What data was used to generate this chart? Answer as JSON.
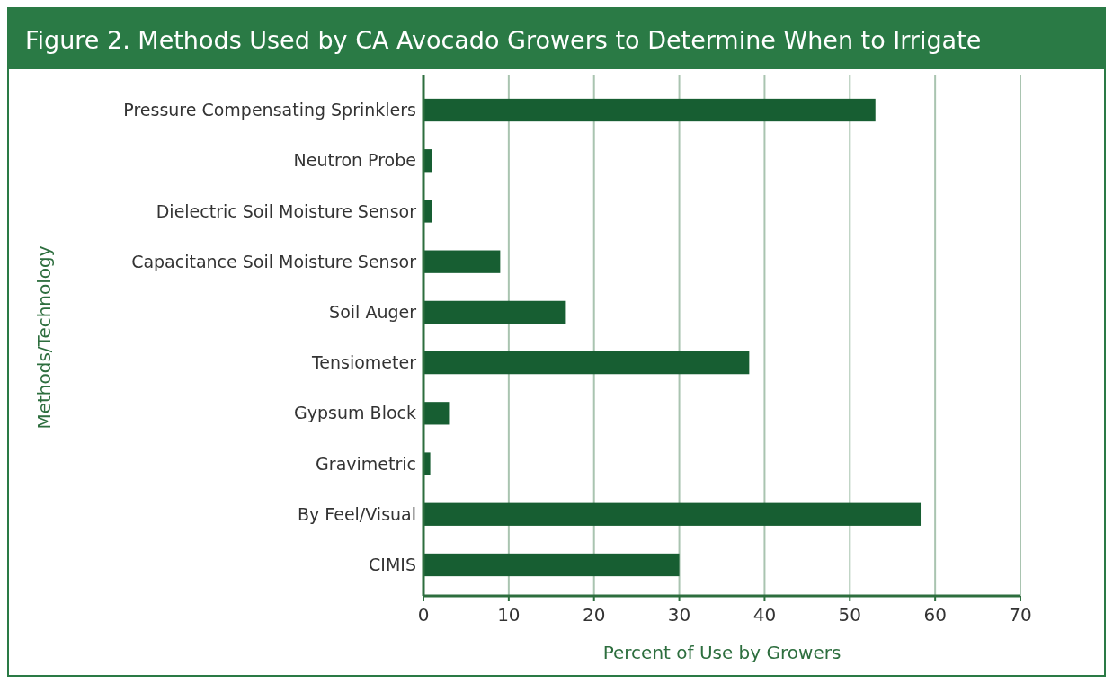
{
  "chart_data": {
    "type": "bar",
    "orientation": "horizontal",
    "title": "Figure 2. Methods Used by CA Avocado Growers to Determine When to Irrigate",
    "xlabel": "Percent of Use by Growers",
    "ylabel": "Methods/Technology",
    "categories": [
      "Pressure Compensating Sprinklers",
      "Neutron Probe",
      "Dielectric Soil Moisture Sensor",
      "Capacitance Soil Moisture Sensor",
      "Soil Auger",
      "Tensiometer",
      "Gypsum Block",
      "Gravimetric",
      "By Feel/Visual",
      "CIMIS"
    ],
    "values": [
      53,
      1,
      1,
      9,
      16.7,
      38.2,
      3,
      0.8,
      58.3,
      30
    ],
    "color": "#175e32",
    "xlim": [
      0,
      70
    ],
    "xticks": [
      0,
      10,
      20,
      30,
      40,
      50,
      60,
      70
    ],
    "grid": "x"
  }
}
